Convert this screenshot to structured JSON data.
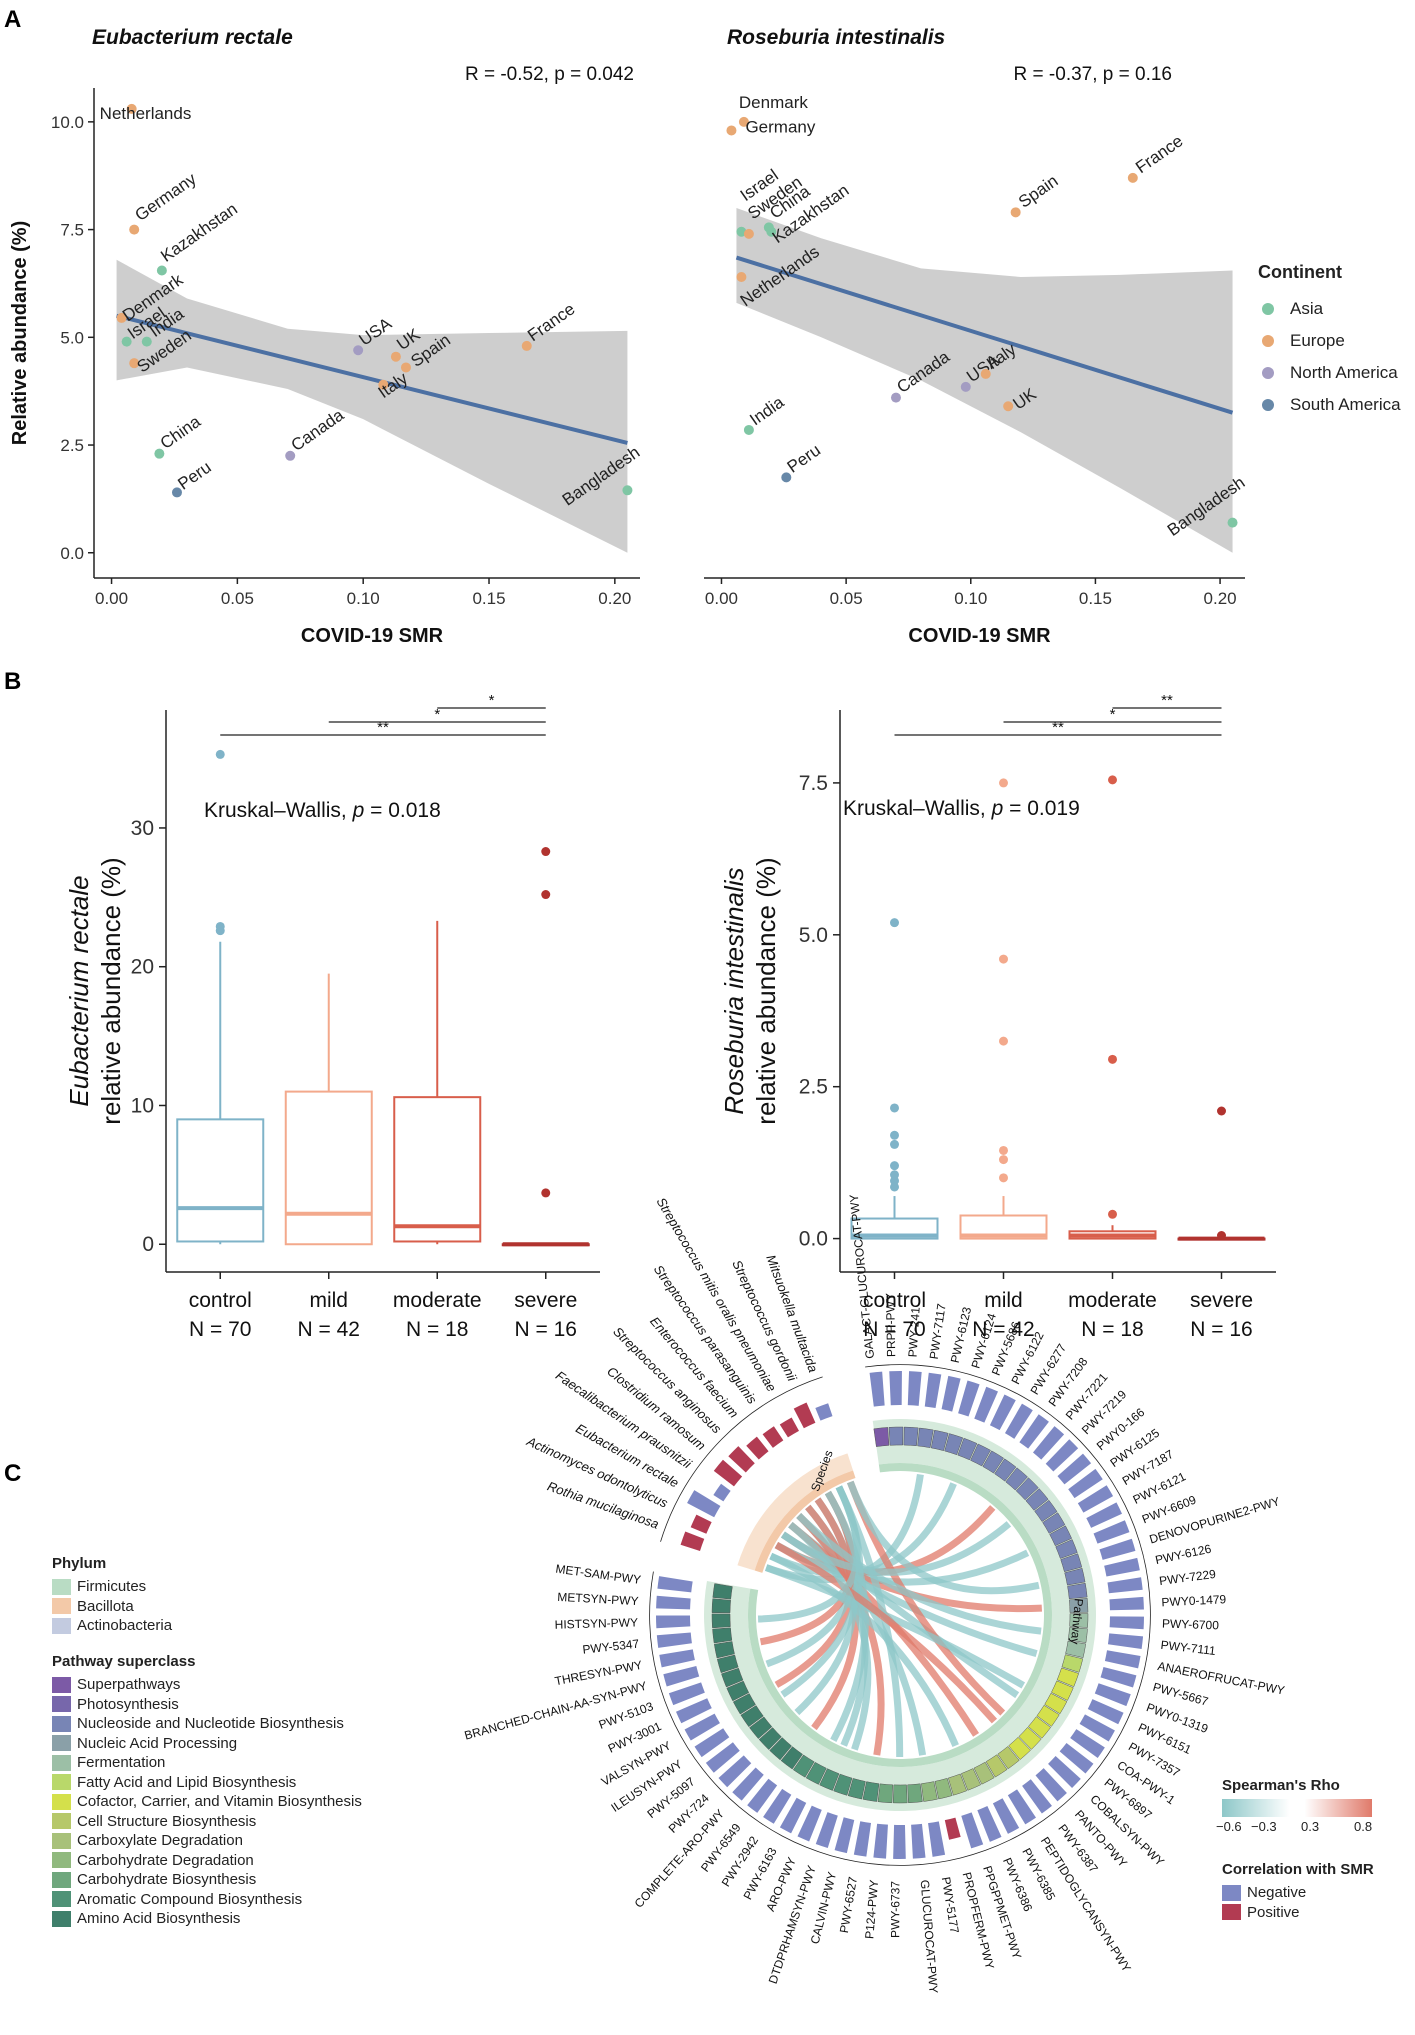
{
  "panels": {
    "A": "A",
    "B": "B",
    "C": "C"
  },
  "colors": {
    "asia": "#7fc6a4",
    "europe": "#e8a873",
    "north_america": "#a39cc2",
    "south_america": "#6788a8",
    "line": "#4c70a3",
    "band": "#c9c9c9",
    "control": "#7fb3c8",
    "mild": "#f3a98c",
    "moderate": "#d85e4b",
    "severe": "#b1332f",
    "negative": "#7d88c4",
    "positive": "#b23b52"
  },
  "legend_continent": {
    "title": "Continent",
    "items": [
      {
        "label": "Asia",
        "color": "#7fc6a4"
      },
      {
        "label": "Europe",
        "color": "#e8a873"
      },
      {
        "label": "North America",
        "color": "#a39cc2"
      },
      {
        "label": "South America",
        "color": "#6788a8"
      }
    ]
  },
  "chart_data": [
    {
      "type": "scatter",
      "title": "Eubacterium rectale",
      "annotation": "R = -0.52, p = 0.042",
      "xlabel": "COVID-19 SMR",
      "ylabel": "Relative abundance (%)",
      "xlim": [
        -0.003,
        0.21
      ],
      "ylim": [
        -0.4,
        10.6
      ],
      "xticks": [
        "0.00",
        "0.05",
        "0.10",
        "0.15",
        "0.20"
      ],
      "yticks": [
        "0.0",
        "2.5",
        "5.0",
        "7.5",
        "10.0"
      ],
      "fit": {
        "x": [
          0.002,
          0.205
        ],
        "y": [
          5.5,
          2.55
        ]
      },
      "band_upper": [
        [
          0.002,
          6.8
        ],
        [
          0.03,
          5.9
        ],
        [
          0.07,
          5.2
        ],
        [
          0.1,
          5.05
        ],
        [
          0.15,
          5.1
        ],
        [
          0.205,
          5.15
        ]
      ],
      "band_lower": [
        [
          0.002,
          4.0
        ],
        [
          0.03,
          4.3
        ],
        [
          0.07,
          3.8
        ],
        [
          0.1,
          3.1
        ],
        [
          0.15,
          1.6
        ],
        [
          0.205,
          0.0
        ]
      ],
      "points": [
        {
          "label": "Netherlands",
          "x": 0.008,
          "y": 10.3,
          "group": "Europe"
        },
        {
          "label": "Germany",
          "x": 0.009,
          "y": 7.5,
          "group": "Europe"
        },
        {
          "label": "Kazakhstan",
          "x": 0.02,
          "y": 6.55,
          "group": "Asia"
        },
        {
          "label": "Denmark",
          "x": 0.004,
          "y": 5.45,
          "group": "Europe"
        },
        {
          "label": "Israel",
          "x": 0.006,
          "y": 4.9,
          "group": "Asia"
        },
        {
          "label": "India",
          "x": 0.014,
          "y": 4.9,
          "group": "Asia"
        },
        {
          "label": "Sweden",
          "x": 0.009,
          "y": 4.4,
          "group": "Europe"
        },
        {
          "label": "China",
          "x": 0.019,
          "y": 2.3,
          "group": "Asia"
        },
        {
          "label": "Peru",
          "x": 0.026,
          "y": 1.4,
          "group": "South America"
        },
        {
          "label": "Canada",
          "x": 0.071,
          "y": 2.25,
          "group": "North America"
        },
        {
          "label": "USA",
          "x": 0.098,
          "y": 4.7,
          "group": "North America"
        },
        {
          "label": "UK",
          "x": 0.113,
          "y": 4.55,
          "group": "Europe"
        },
        {
          "label": "Italy",
          "x": 0.108,
          "y": 3.9,
          "group": "Europe"
        },
        {
          "label": "Spain",
          "x": 0.117,
          "y": 4.3,
          "group": "Europe"
        },
        {
          "label": "France",
          "x": 0.165,
          "y": 4.8,
          "group": "Europe"
        },
        {
          "label": "Bangladesh",
          "x": 0.205,
          "y": 1.45,
          "group": "Asia"
        }
      ]
    },
    {
      "type": "scatter",
      "title": "Roseburia intestinalis",
      "annotation": "R = -0.37, p = 0.16",
      "xlabel": "COVID-19 SMR",
      "ylabel": "",
      "xlim": [
        -0.003,
        0.21
      ],
      "ylim": [
        -0.4,
        10.6
      ],
      "xticks": [
        "0.00",
        "0.05",
        "0.10",
        "0.15",
        "0.20"
      ],
      "yticks": [],
      "fit": {
        "x": [
          0.006,
          0.205
        ],
        "y": [
          6.85,
          3.25
        ]
      },
      "band_upper": [
        [
          0.006,
          8.0
        ],
        [
          0.04,
          7.3
        ],
        [
          0.08,
          6.6
        ],
        [
          0.12,
          6.4
        ],
        [
          0.16,
          6.45
        ],
        [
          0.205,
          6.55
        ]
      ],
      "band_lower": [
        [
          0.006,
          5.8
        ],
        [
          0.04,
          5.0
        ],
        [
          0.08,
          4.0
        ],
        [
          0.12,
          2.8
        ],
        [
          0.16,
          1.5
        ],
        [
          0.205,
          0.0
        ]
      ],
      "points": [
        {
          "label": "Denmark",
          "x": 0.009,
          "y": 10.0,
          "group": "Europe"
        },
        {
          "label": "Germany",
          "x": 0.004,
          "y": 9.8,
          "group": "Europe"
        },
        {
          "label": "Israel",
          "x": 0.008,
          "y": 7.45,
          "group": "Asia"
        },
        {
          "label": "Sweden",
          "x": 0.011,
          "y": 7.4,
          "group": "Europe"
        },
        {
          "label": "China",
          "x": 0.019,
          "y": 7.55,
          "group": "Asia"
        },
        {
          "label": "Kazakhstan",
          "x": 0.02,
          "y": 7.45,
          "group": "Asia"
        },
        {
          "label": "Netherlands",
          "x": 0.008,
          "y": 6.4,
          "group": "Europe"
        },
        {
          "label": "France",
          "x": 0.165,
          "y": 8.7,
          "group": "Europe"
        },
        {
          "label": "Spain",
          "x": 0.118,
          "y": 7.9,
          "group": "Europe"
        },
        {
          "label": "Canada",
          "x": 0.07,
          "y": 3.6,
          "group": "North America"
        },
        {
          "label": "USA",
          "x": 0.098,
          "y": 3.85,
          "group": "North America"
        },
        {
          "label": "Italy",
          "x": 0.106,
          "y": 4.15,
          "group": "Europe"
        },
        {
          "label": "UK",
          "x": 0.115,
          "y": 3.4,
          "group": "Europe"
        },
        {
          "label": "India",
          "x": 0.011,
          "y": 2.85,
          "group": "Asia"
        },
        {
          "label": "Peru",
          "x": 0.026,
          "y": 1.75,
          "group": "South America"
        },
        {
          "label": "Bangladesh",
          "x": 0.205,
          "y": 0.7,
          "group": "Asia"
        }
      ]
    },
    {
      "type": "box",
      "title": "",
      "annotation_prefix": "Kruskal–Wallis,",
      "annotation_p": "p",
      "annotation_value": "= 0.018",
      "ylabel_italic": "Eubacterium rectale",
      "ylabel": "relative abundance (%)",
      "ylim": [
        -2,
        38.5
      ],
      "yticks": [
        0,
        10,
        20,
        30
      ],
      "categories": [
        "control",
        "mild",
        "moderate",
        "severe"
      ],
      "n_labels": [
        "N = 70",
        "N = 42",
        "N = 18",
        "N = 16"
      ],
      "boxes": [
        {
          "q1": 0.2,
          "median": 2.6,
          "q3": 9.0,
          "min": 0.0,
          "max": 21.8,
          "outliers": [
            22.6,
            22.9,
            35.3
          ]
        },
        {
          "q1": 0.0,
          "median": 2.2,
          "q3": 11.0,
          "min": 0.0,
          "max": 19.5,
          "outliers": []
        },
        {
          "q1": 0.2,
          "median": 1.3,
          "q3": 10.6,
          "min": 0.0,
          "max": 23.3,
          "outliers": []
        },
        {
          "q1": 0.0,
          "median": 0.0,
          "q3": 0.0,
          "min": 0.0,
          "max": 0.0,
          "outliers": [
            3.7,
            25.2,
            28.3
          ]
        }
      ],
      "brackets": [
        {
          "from": 2,
          "to": 3,
          "label": "*",
          "y": 39.6
        },
        {
          "from": 1,
          "to": 3,
          "label": "*",
          "y": 38.6
        },
        {
          "from": 0,
          "to": 3,
          "label": "**",
          "y": 37.6
        }
      ]
    },
    {
      "type": "box",
      "title": "",
      "annotation_prefix": "Kruskal–Wallis,",
      "annotation_p": "p",
      "annotation_value": "= 0.019",
      "ylabel_italic": "Roseburia intestinalis",
      "ylabel": "relative abundance (%)",
      "ylim": [
        -0.55,
        8.7
      ],
      "yticks": [
        0.0,
        2.5,
        5.0,
        7.5
      ],
      "ytick_labels": [
        "0.0",
        "2.5",
        "5.0",
        "7.5"
      ],
      "categories": [
        "control",
        "mild",
        "moderate",
        "severe"
      ],
      "n_labels": [
        "N = 70",
        "N = 42",
        "N = 18",
        "N = 16"
      ],
      "boxes": [
        {
          "q1": 0.0,
          "median": 0.05,
          "q3": 0.33,
          "min": 0.0,
          "max": 0.7,
          "outliers": [
            0.85,
            0.95,
            1.05,
            1.2,
            1.55,
            1.7,
            2.15,
            5.2
          ]
        },
        {
          "q1": 0.0,
          "median": 0.05,
          "q3": 0.38,
          "min": 0.0,
          "max": 0.7,
          "outliers": [
            1.0,
            1.3,
            1.45,
            3.25,
            4.6,
            7.5
          ]
        },
        {
          "q1": 0.0,
          "median": 0.05,
          "q3": 0.12,
          "min": 0.0,
          "max": 0.22,
          "outliers": [
            0.4,
            2.95,
            7.55
          ]
        },
        {
          "q1": 0.0,
          "median": 0.0,
          "q3": 0.0,
          "min": 0.0,
          "max": 0.0,
          "outliers": [
            0.05,
            2.1
          ]
        }
      ],
      "brackets": [
        {
          "from": 2,
          "to": 3,
          "label": "**",
          "y": 8.35
        },
        {
          "from": 1,
          "to": 3,
          "label": "*",
          "y": 8.15
        },
        {
          "from": 0,
          "to": 3,
          "label": "**",
          "y": 7.95
        }
      ]
    },
    {
      "type": "chord",
      "species": [
        "Rothia mucilaginosa",
        "Actinomyces odontolyticus",
        "Eubacterium rectale",
        "Faecalibacterium prausnitzii",
        "Clostridium ramosum",
        "Streptococcus anginosus",
        "Enterococcus faecium",
        "Streptococcus parasanguinis",
        "Streptococcus mitis oralis pneumoniae",
        "Streptococcus gordonii",
        "Mitsuokella multacida"
      ],
      "species_label": "Species",
      "pathway_label": "Pathway",
      "pathways": [
        "GALACT-GLUCUROCAT-PWY",
        "PRPP-PWY",
        "PWY-241",
        "PWY-7117",
        "PWY-6123",
        "PWY-6124",
        "PWY-5686",
        "PWY-6122",
        "PWY-6277",
        "PWY-7208",
        "PWY-7221",
        "PWY-7219",
        "PWY0-166",
        "PWY-6125",
        "PWY-7187",
        "PWY-6121",
        "PWY-6609",
        "DENOVOPURINE2-PWY",
        "PWY-6126",
        "PWY-7229",
        "PWY0-1479",
        "PWY-6700",
        "PWY-7111",
        "ANAEROFRUCAT-PWY",
        "PWY-5667",
        "PWY0-1319",
        "PWY-6151",
        "PWY-7357",
        "COA-PWY-1",
        "PWY-6897",
        "COBALSYN-PWY",
        "PANTO-PWY",
        "PWY-6387",
        "PEPTIDOGLYCANSYN-PWY",
        "PWY-6385",
        "PWY-6386",
        "PPGPPMET-PWY",
        "PROPFERM-PWY",
        "PWY-5177",
        "GLUCUROCAT-PWY",
        "PWY-6737",
        "P124-PWY",
        "PWY-6527",
        "CALVIN-PWY",
        "DTDPRHAMSYN-PWY",
        "ARO-PWY",
        "PWY-6163",
        "PWY-2942",
        "PWY-6549",
        "COMPLETE-ARO-PWY",
        "PWY-724",
        "PWY-5097",
        "ILEUSYN-PWY",
        "VALSYN-PWY",
        "PWY-3001",
        "PWY-5103",
        "BRANCHED-CHAIN-AA-SYN-PWY",
        "THRESYN-PWY",
        "PWY-5347",
        "HISTSYN-PWY",
        "METSYN-PWY",
        "MET-SAM-PWY"
      ],
      "species_bar_heights": [
        0.6,
        0.5,
        0.9,
        0.35,
        0.75,
        0.7,
        0.55,
        0.5,
        0.45,
        0.65,
        0.4
      ],
      "species_bar_signs": [
        1,
        1,
        -1,
        -1,
        1,
        1,
        1,
        1,
        1,
        1,
        -1
      ],
      "pathway_sign_positive_index": 37
    }
  ],
  "legend_phylum": {
    "title": "Phylum",
    "items": [
      {
        "label": "Firmicutes",
        "color": "#b9dcc4"
      },
      {
        "label": "Bacillota",
        "color": "#f3c9a8"
      },
      {
        "label": "Actinobacteria",
        "color": "#c3cbe0"
      }
    ]
  },
  "legend_superclass": {
    "title": "Pathway superclass",
    "items": [
      {
        "label": "Superpathways",
        "color": "#7c5aa6"
      },
      {
        "label": "Photosynthesis",
        "color": "#7767ab"
      },
      {
        "label": "Nucleoside and Nucleotide Biosynthesis",
        "color": "#7885b5"
      },
      {
        "label": "Nucleic Acid Processing",
        "color": "#8aa0a8"
      },
      {
        "label": "Fermentation",
        "color": "#9cbfa6"
      },
      {
        "label": "Fatty Acid and Lipid Biosynthesis",
        "color": "#b9d86a"
      },
      {
        "label": "Cofactor, Carrier, and Vitamin Biosynthesis",
        "color": "#d4e04b"
      },
      {
        "label": "Cell Structure Biosynthesis",
        "color": "#b6c86a"
      },
      {
        "label": "Carboxylate Degradation",
        "color": "#a8c17a"
      },
      {
        "label": "Carbohydrate Degradation",
        "color": "#90b97e"
      },
      {
        "label": "Carbohydrate Biosynthesis",
        "color": "#6fa77d"
      },
      {
        "label": "Aromatic Compound Biosynthesis",
        "color": "#4f9277"
      },
      {
        "label": "Amino Acid Biosynthesis",
        "color": "#3f7f6b"
      }
    ]
  },
  "legend_rho": {
    "title": "Spearman's Rho",
    "ticks": [
      "−0.6",
      "−0.3",
      "0.3",
      "0.8"
    ],
    "low_color": "#8dc7c8",
    "high_color": "#e07a6a"
  },
  "legend_corr": {
    "title": "Correlation with SMR",
    "items": [
      {
        "label": "Negative",
        "color": "#7d88c4"
      },
      {
        "label": "Positive",
        "color": "#b23b52"
      }
    ]
  }
}
